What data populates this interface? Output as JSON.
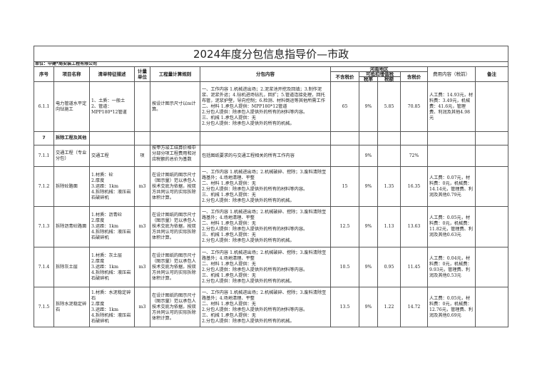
{
  "title": "2024年度分包信息指导价—市政",
  "unit_line": "单位：中建*局安装工程有限公司",
  "headers": {
    "seq": "序号",
    "name": "项目名称",
    "desc": "清单特征描述",
    "unit": "计量单位",
    "rule": "工程量计算规则",
    "content": "分包内容",
    "region": "河南地区",
    "no_tax": "不含税价",
    "deductible": "可抵扣增值税",
    "tax_rate": "税率",
    "tax_amount": "税额",
    "with_tax": "含税价",
    "fees": "费用内容（税前）",
    "remark": "备注"
  },
  "rows": [
    {
      "seq": "6.1.1",
      "name": "电力管道水平定向钻施工",
      "desc": "1、土质：一般土\n2、管道：\nMPP180*12管道",
      "unit": "",
      "rule": "按设计图示尺寸以m计算。",
      "content": "一、工作内容 1.机械进出场；2.泥浆池开挖及回填；3.制作泥浆、泥浆外运；4.钻机进场钻孔，回扩；5.管道连接处理，回托布管，泥浆护壁，导向控制；6.检测、材料倒运等其他所需工作\n二、材料 1.承包人提供：MPP180*12管道\n 2.分包人提供：除承包人提供外的所有的材料等内容。\n三、机械 1.承包人提供：无\n 2.分包人提供：除承包人提供外的所有的机械。",
      "no_tax": "65",
      "tax_rate": "9%",
      "tax_amount": "5.85",
      "with_tax": "70.85",
      "fees": "人工费：14.93元，材料费：3.49元，机械费：41.6元，管理费、利润及其他4.98元",
      "remark": ""
    },
    {
      "seq": "7",
      "name": "拆除工程及其他",
      "section": true
    },
    {
      "seq": "7.1.1",
      "name": "交通工程（专业分包）",
      "desc": "交通工程",
      "unit": "项",
      "rule": "按甲方竣工结算价格中分部分项工程费用和对应税额的总价为基数",
      "content": "包括图纸要求的与交通工程相关的所有工作内容",
      "no_tax": "",
      "tax_rate": "9%",
      "tax_amount": "",
      "with_tax": "72%",
      "fees": "",
      "remark": ""
    },
    {
      "seq": "7.1.2",
      "name": "拆除砼路面",
      "desc": "1.材质：砼\n2.厚度\n3.运距：1km\n4.拆除机械：液压岩石破碎机",
      "unit": "m3",
      "rule": "在设计图纸的图示尺寸（图示量）范以承包人技术交底为依据，按双方共同认可的实际拆除体积计算。",
      "content": "一、工作内容 1.机械进出场；2.机械破碎、挖除；3.废料清除至路基外；4.场地清理、平整\n二、材料 1.承包人提供：无\n 2.分包人提供：除承包人提供外的所有的材料等内容。\n三、机械 1.承包人提供：无\n 2.分包人提供：除承包人提供外的所有的机械。",
      "no_tax": "15",
      "tax_rate": "9%",
      "tax_amount": "1.35",
      "with_tax": "16.35",
      "fees": "人工费：0.07元，材料费：0元，机械费：14.14元，管理费、利润及其他0.79元",
      "remark": ""
    },
    {
      "seq": "7.1.3",
      "name": "拆除沥青砼路面",
      "desc": "1.材质：沥青砼\n2.厚度\n3.运距：1km\n4.拆除机械：液压岩石破碎机",
      "unit": "m3",
      "rule": "在设计图纸的图示尺寸（图示量）范以承包人技术交底为依据，按双方共同认可的实际拆除体积计算。",
      "content": "一、工作内容 1.机械进出场；2.机械破碎、挖除；3.废料清除至路基外；4.场地清理、平整\n二、材料 1.承包人提供：无\n 2.分包人提供：除承包人提供外的所有的材料等内容。\n三、机械 1.承包人提供：无\n 2.分包人提供：除承包人提供外的所有的机械。",
      "no_tax": "12.5",
      "tax_rate": "9%",
      "tax_amount": "1.13",
      "with_tax": "13.63",
      "fees": "人工费：0.05元，材料费：0元，机械费：11.82元，管理费、利润及其他0.63元",
      "remark": ""
    },
    {
      "seq": "7.1.4",
      "name": "拆除灰土层",
      "desc": "1.材质：灰土层\n2.厚度\n3.运距：1km\n4.拆除机械：液压岩石破碎机",
      "unit": "m3",
      "rule": "在设计图纸的图示尺寸（图示量）范以承包人技术交底为依据，按双方共同认可的实际拆除体积计算。",
      "content": "一、工作内容 1.机械进出场；2.机械破碎、挖除；3.废料清除至路基外；4.场地清理、平整\n二、材料 1.承包人提供：无\n 2.分包人提供：除承包人提供外的所有的材料等内容。\n三、机械 1.承包人提供：无\n 2.分包人提供：除承包人提供外的所有的机械。",
      "no_tax": "10.5",
      "tax_rate": "9%",
      "tax_amount": "0.95",
      "with_tax": "11.45",
      "fees": "人工费：0.04元，材料费：0元，机械费：9.93元，管理费、利润及其他0.53元",
      "remark": ""
    },
    {
      "seq": "7.1.5",
      "name": "拆除水泥稳定碎石",
      "desc": "1.材质：水泥稳定碎石\n2.厚度\n3.运距：1km\n4.拆除机械：液压岩石破碎机",
      "unit": "m3",
      "rule": "在设计图纸的图示尺寸（图示量）范以承包人技术交底为依据，按双方共同认可的实际拆除体积计算。",
      "content": "一、工作内容 1.机械进出场；2.机械破碎、挖除；3.废料清除至路基外；4.场地清理、平整\n二、材料 1.承包人提供：无\n 2.分包人提供：除承包人提供外的所有的材料等内容。\n三、机械 1.承包人提供：无\n 2.分包人提供：除承包人提供外的所有的机械。",
      "no_tax": "13.5",
      "tax_rate": "9%",
      "tax_amount": "1.22",
      "with_tax": "14.72",
      "fees": "人工费：0.05元，材料费：0元，机械费：12.76元，管理费、利润及其他0.69元",
      "remark": ""
    }
  ]
}
